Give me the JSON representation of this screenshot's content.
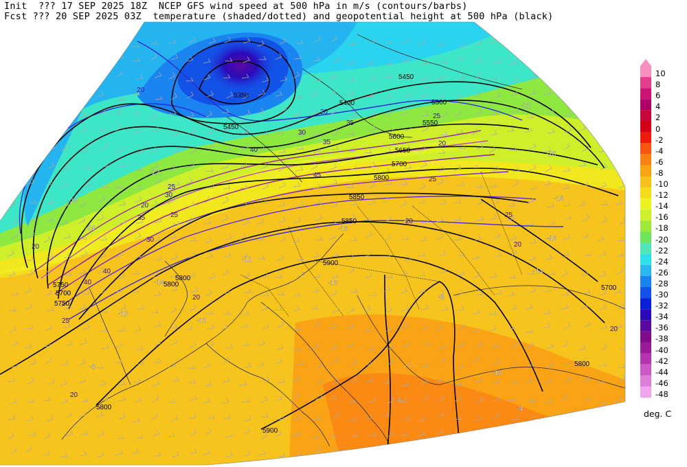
{
  "header": {
    "line1": "Init  ??? 17 SEP 2025 18Z  NCEP GFS wind speed at 500 hPa in m/s (contours/barbs)",
    "line2": "Fcst ??? 20 SEP 2025 03Z  temperature (shaded/dotted) and geopotential height at 500 hPa (black)"
  },
  "colorbar": {
    "units": "deg. C",
    "entries": [
      {
        "label": "10",
        "color": "#f58fc0"
      },
      {
        "label": "8",
        "color": "#e43d8c"
      },
      {
        "label": "6",
        "color": "#cc1477"
      },
      {
        "label": "4",
        "color": "#b0006a"
      },
      {
        "label": "2",
        "color": "#c8083a"
      },
      {
        "label": "0",
        "color": "#d40019"
      },
      {
        "label": "-2",
        "color": "#ee1a0a"
      },
      {
        "label": "-4",
        "color": "#f8560e"
      },
      {
        "label": "-6",
        "color": "#fb8212"
      },
      {
        "label": "-8",
        "color": "#faa315"
      },
      {
        "label": "-10",
        "color": "#f6c11c"
      },
      {
        "label": "-12",
        "color": "#f4de1c"
      },
      {
        "label": "-14",
        "color": "#ecf21e"
      },
      {
        "label": "-16",
        "color": "#cdf02a"
      },
      {
        "label": "-18",
        "color": "#9ee83a"
      },
      {
        "label": "-20",
        "color": "#6fe35a"
      },
      {
        "label": "-22",
        "color": "#4ee6b8"
      },
      {
        "label": "-24",
        "color": "#2ee0e8"
      },
      {
        "label": "-26",
        "color": "#2ab6ef"
      },
      {
        "label": "-28",
        "color": "#1a84f0"
      },
      {
        "label": "-30",
        "color": "#1252e6"
      },
      {
        "label": "-32",
        "color": "#0a20d8"
      },
      {
        "label": "-34",
        "color": "#2a0ab8"
      },
      {
        "label": "-36",
        "color": "#5a0a9e"
      },
      {
        "label": "-38",
        "color": "#7e0c8c"
      },
      {
        "label": "-40",
        "color": "#9a1a98"
      },
      {
        "label": "-42",
        "color": "#b436ae"
      },
      {
        "label": "-44",
        "color": "#cc58c6"
      },
      {
        "label": "-46",
        "color": "#de7ed8"
      },
      {
        "label": "-48",
        "color": "#f0a4ee"
      }
    ]
  },
  "height_labels": [
    "5350",
    "5450",
    "5400",
    "5450",
    "5500",
    "5550",
    "5600",
    "5650",
    "5700",
    "5750",
    "5800",
    "5850",
    "5850",
    "5900",
    "5800",
    "5700",
    "5750",
    "5800",
    "5800",
    "5900",
    "5700",
    "5800"
  ],
  "wind_labels": [
    "20",
    "20",
    "30",
    "40",
    "35",
    "45",
    "35",
    "25",
    "20",
    "25",
    "30",
    "40",
    "30",
    "40",
    "25",
    "20",
    "20",
    "20",
    "20",
    "25",
    "35",
    "25",
    "20",
    "25",
    "20",
    "20"
  ],
  "temp_labels": [
    "-24",
    "-22",
    "-20",
    "-18",
    "-16",
    "-14",
    "-12",
    "-10",
    "-8",
    "-6",
    "-4",
    "-16",
    "-14",
    "-12",
    "-10",
    "-10",
    "-8",
    "-22",
    "-24"
  ]
}
